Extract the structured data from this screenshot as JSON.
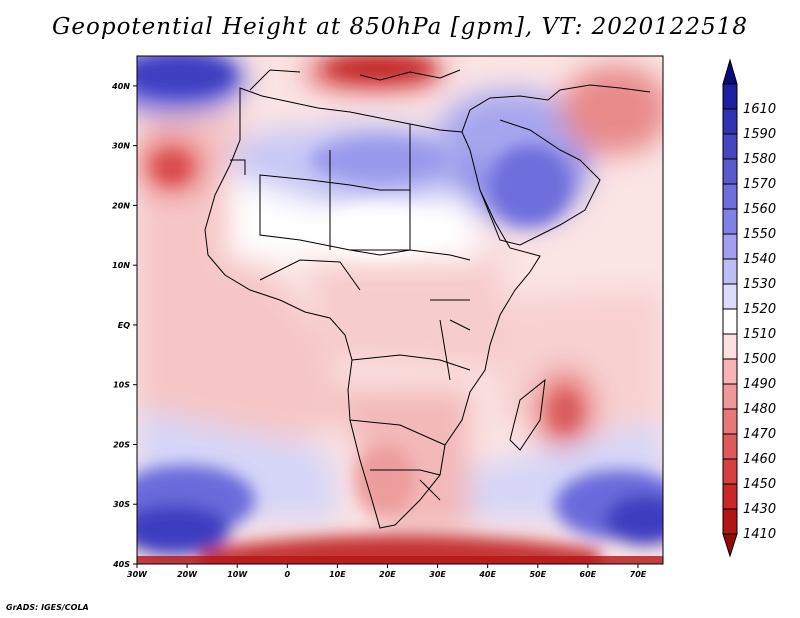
{
  "title": "Geopotential Height at 850hPa [gpm], VT: 2020122518",
  "footer": "GrADS: IGES/COLA",
  "map": {
    "lon_range": [
      -30,
      75
    ],
    "lat_range": [
      -40,
      45
    ],
    "lat_ticks": [
      {
        "value": 40,
        "label": "40N"
      },
      {
        "value": 30,
        "label": "30N"
      },
      {
        "value": 20,
        "label": "20N"
      },
      {
        "value": 10,
        "label": "10N"
      },
      {
        "value": 0,
        "label": "EQ"
      },
      {
        "value": -10,
        "label": "10S"
      },
      {
        "value": -20,
        "label": "20S"
      },
      {
        "value": -30,
        "label": "30S"
      },
      {
        "value": -40,
        "label": "40S"
      }
    ],
    "lon_ticks": [
      {
        "value": -30,
        "label": "30W"
      },
      {
        "value": -20,
        "label": "20W"
      },
      {
        "value": -10,
        "label": "10W"
      },
      {
        "value": 0,
        "label": "0"
      },
      {
        "value": 10,
        "label": "10E"
      },
      {
        "value": 20,
        "label": "20E"
      },
      {
        "value": 30,
        "label": "30E"
      },
      {
        "value": 40,
        "label": "40E"
      },
      {
        "value": 50,
        "label": "50E"
      },
      {
        "value": 60,
        "label": "60E"
      },
      {
        "value": 70,
        "label": "70E"
      }
    ]
  },
  "colorbar": {
    "levels": [
      {
        "label": "1610",
        "color": "#1e1ea0"
      },
      {
        "label": "1590",
        "color": "#3232b4"
      },
      {
        "label": "1580",
        "color": "#4646c3"
      },
      {
        "label": "1570",
        "color": "#5a5ad0"
      },
      {
        "label": "1560",
        "color": "#6e6edc"
      },
      {
        "label": "1550",
        "color": "#8282e6"
      },
      {
        "label": "1540",
        "color": "#a0a0ee"
      },
      {
        "label": "1530",
        "color": "#bebef5"
      },
      {
        "label": "1520",
        "color": "#dcdcfa"
      },
      {
        "label": "1510",
        "color": "#ffffff"
      },
      {
        "label": "1500",
        "color": "#fde0e0"
      },
      {
        "label": "1490",
        "color": "#f8b4b4"
      },
      {
        "label": "1480",
        "color": "#f09898"
      },
      {
        "label": "1470",
        "color": "#e87878"
      },
      {
        "label": "1460",
        "color": "#e05a5a"
      },
      {
        "label": "1450",
        "color": "#d84040"
      },
      {
        "label": "1430",
        "color": "#c82828"
      },
      {
        "label": "1410",
        "color": "#b41414"
      }
    ],
    "top_color": "#0a0a78",
    "bottom_color": "#960a0a"
  }
}
